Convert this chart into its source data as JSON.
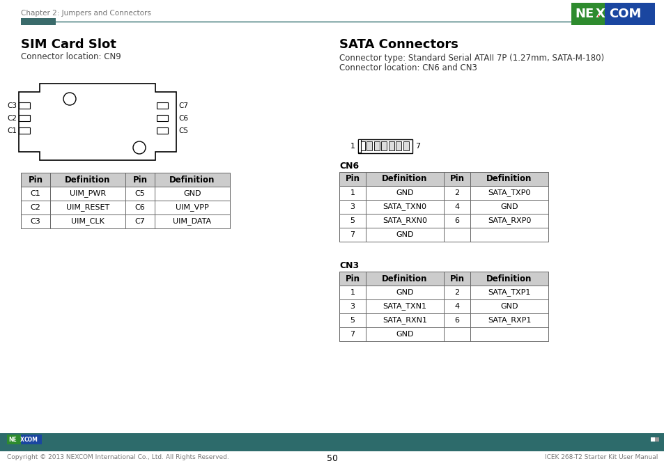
{
  "page_header": "Chapter 2: Jumpers and Connectors",
  "page_number": "50",
  "footer_left": "Copyright © 2013 NEXCOM International Co., Ltd. All Rights Reserved.",
  "footer_right": "ICEK 268-T2 Starter Kit User Manual",
  "header_line_color": "#2d6b6b",
  "header_block_color": "#3a6b6b",
  "sim_title": "SIM Card Slot",
  "sim_location": "Connector location: CN9",
  "sata_title": "SATA Connectors",
  "sata_type": "Connector type: Standard Serial ATAII 7P (1.27mm, SATA-M-180)",
  "sata_location": "Connector location: CN6 and CN3",
  "sim_table_headers": [
    "Pin",
    "Definition",
    "Pin",
    "Definition"
  ],
  "sim_table_rows": [
    [
      "C1",
      "UIM_PWR",
      "C5",
      "GND"
    ],
    [
      "C2",
      "UIM_RESET",
      "C6",
      "UIM_VPP"
    ],
    [
      "C3",
      "UIM_CLK",
      "C7",
      "UIM_DATA"
    ]
  ],
  "cn6_label": "CN6",
  "cn6_headers": [
    "Pin",
    "Definition",
    "Pin",
    "Definition"
  ],
  "cn6_rows": [
    [
      "1",
      "GND",
      "2",
      "SATA_TXP0"
    ],
    [
      "3",
      "SATA_TXN0",
      "4",
      "GND"
    ],
    [
      "5",
      "SATA_RXN0",
      "6",
      "SATA_RXP0"
    ],
    [
      "7",
      "GND",
      "",
      ""
    ]
  ],
  "cn3_label": "CN3",
  "cn3_headers": [
    "Pin",
    "Definition",
    "Pin",
    "Definition"
  ],
  "cn3_rows": [
    [
      "1",
      "GND",
      "2",
      "SATA_TXP1"
    ],
    [
      "3",
      "SATA_TXN1",
      "4",
      "GND"
    ],
    [
      "5",
      "SATA_RXN1",
      "6",
      "SATA_RXP1"
    ],
    [
      "7",
      "GND",
      "",
      ""
    ]
  ],
  "bg_color": "#ffffff",
  "table_header_bg": "#cccccc",
  "table_border_color": "#666666",
  "text_color": "#333333",
  "gray_text": "#777777",
  "teal_color": "#2d6b6b",
  "teal_dark": "#1e5555",
  "footer_bar_color": "#2d6b6b",
  "nexcom_green": "#2e8b2e",
  "nexcom_blue": "#1a46a0"
}
